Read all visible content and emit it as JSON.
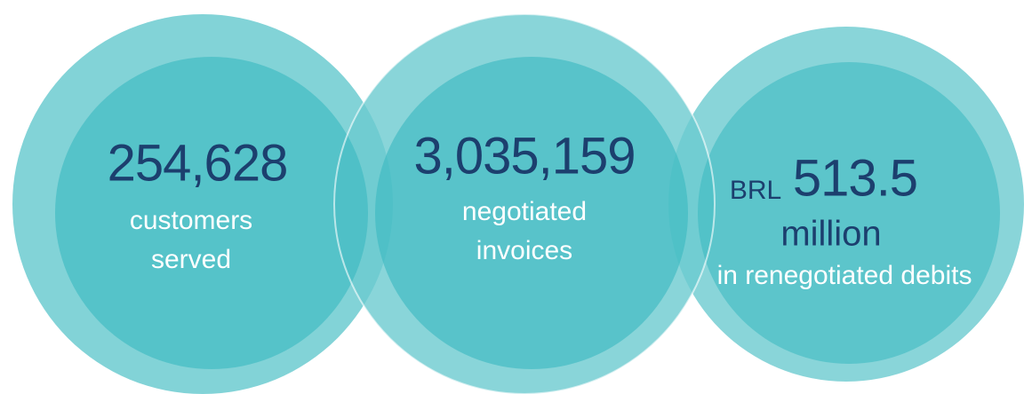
{
  "items": [
    {
      "value": "254,628",
      "label": [
        "customers",
        "served"
      ]
    },
    {
      "value": "3,035,159",
      "label": [
        "negotiated",
        "invoices"
      ]
    },
    {
      "prefix": "BRL",
      "value": "513.5",
      "unit": "million",
      "label": [
        "in renegotiated debits"
      ]
    }
  ]
}
